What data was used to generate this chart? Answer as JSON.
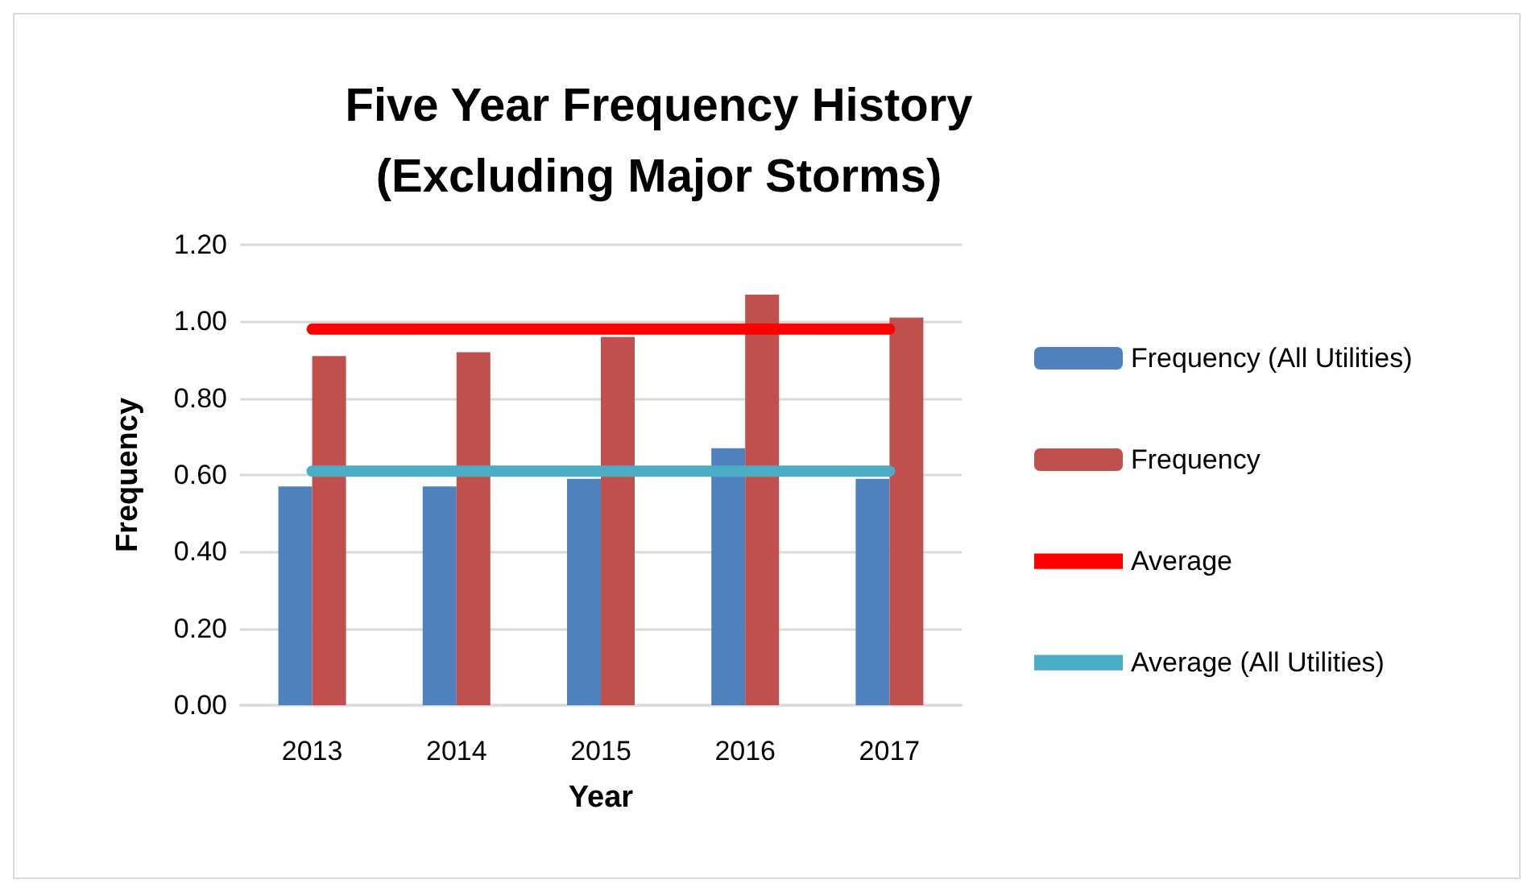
{
  "chart_data": {
    "type": "bar",
    "title": "Five Year Frequency History\n(Excluding Major Storms)",
    "xlabel": "Year",
    "ylabel": "Frequency",
    "categories": [
      "2013",
      "2014",
      "2015",
      "2016",
      "2017"
    ],
    "series": [
      {
        "name": "Frequency (All Utilities)",
        "color": "#4f81bd",
        "values": [
          0.57,
          0.57,
          0.59,
          0.67,
          0.59
        ]
      },
      {
        "name": "Frequency",
        "color": "#c0504d",
        "values": [
          0.91,
          0.92,
          0.96,
          1.07,
          1.01
        ]
      },
      {
        "name": "Average",
        "type": "line",
        "color": "#ff0000",
        "values": [
          0.98,
          0.98,
          0.98,
          0.98,
          0.98
        ]
      },
      {
        "name": "Average (All Utilities)",
        "type": "line",
        "color": "#4bacc6",
        "values": [
          0.61,
          0.61,
          0.61,
          0.61,
          0.61
        ]
      }
    ],
    "ylim": [
      0,
      1.2
    ],
    "yticks": [
      {
        "value": 0,
        "label": "0.00"
      },
      {
        "value": 0.2,
        "label": "0.20"
      },
      {
        "value": 0.4,
        "label": "0.40"
      },
      {
        "value": 0.6,
        "label": "0.60"
      },
      {
        "value": 0.8,
        "label": "0.80"
      },
      {
        "value": 1,
        "label": "1.00"
      },
      {
        "value": 1.2,
        "label": "1.20"
      }
    ],
    "grid": "y",
    "legend": "right"
  }
}
